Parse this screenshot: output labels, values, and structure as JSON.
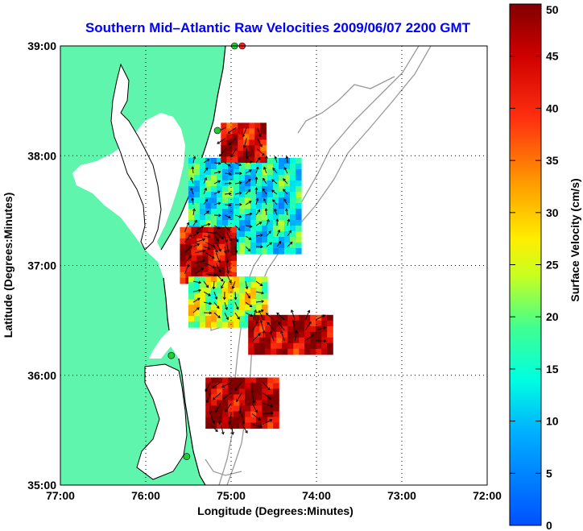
{
  "title": "Southern Mid–Atlantic Raw Velocities 2009/06/07 2200 GMT",
  "colors": {
    "title": "#0000ff",
    "land": "#5ff5ac",
    "water": "#ffffff",
    "coast": "#000000",
    "bathymetry": "#9a9a9a",
    "station": "#22cc33",
    "station_active": "#ff2020",
    "arrow": "#000000",
    "grid": "#000000"
  },
  "map": {
    "x_label": "Longitude (Degrees:Minutes)",
    "y_label": "Latitude (Degrees:Minutes)",
    "lon_range": [
      -77,
      -72
    ],
    "lat_range": [
      35,
      39
    ],
    "x_ticks": [
      {
        "value": -77,
        "label": "77:00"
      },
      {
        "value": -76,
        "label": "76:00"
      },
      {
        "value": -75,
        "label": "75:00"
      },
      {
        "value": -74,
        "label": "74:00"
      },
      {
        "value": -73,
        "label": "73:00"
      },
      {
        "value": -72,
        "label": "72:00"
      }
    ],
    "y_ticks": [
      {
        "value": 35,
        "label": "35:00"
      },
      {
        "value": 36,
        "label": "36:00"
      },
      {
        "value": 37,
        "label": "37:00"
      },
      {
        "value": 38,
        "label": "38:00"
      },
      {
        "value": 39,
        "label": "39:00"
      }
    ],
    "grid": "dotted",
    "stations": [
      {
        "lon": -74.87,
        "lat": 39.0,
        "status": "active"
      },
      {
        "lon": -74.96,
        "lat": 39.0,
        "status": "ok"
      },
      {
        "lon": -75.16,
        "lat": 38.23,
        "status": "ok"
      },
      {
        "lon": -75.7,
        "lat": 36.18,
        "status": "ok"
      },
      {
        "lon": -75.52,
        "lat": 35.26,
        "status": "ok"
      }
    ]
  },
  "colorbar": {
    "label": "Surface Velocity (cm/s)",
    "min": 0,
    "max": 50,
    "ticks": [
      {
        "value": 0,
        "label": "0"
      },
      {
        "value": 5,
        "label": "5"
      },
      {
        "value": 10,
        "label": "10"
      },
      {
        "value": 15,
        "label": "15"
      },
      {
        "value": 20,
        "label": "20"
      },
      {
        "value": 25,
        "label": "25"
      },
      {
        "value": 30,
        "label": "30"
      },
      {
        "value": 35,
        "label": "35"
      },
      {
        "value": 40,
        "label": "40"
      },
      {
        "value": 45,
        "label": "45"
      },
      {
        "value": 50,
        "label": "50"
      }
    ]
  },
  "velocity_regions": [
    {
      "name": "delmarva-cyan",
      "speed": 14,
      "lon": [
        -75.5,
        -74.2
      ],
      "lat": [
        37.12,
        37.98
      ]
    },
    {
      "name": "delaware-mouth-red",
      "speed": 44,
      "lon": [
        -75.12,
        -74.6
      ],
      "lat": [
        37.95,
        38.3
      ]
    },
    {
      "name": "chesapeake-offshore-red",
      "speed": 45,
      "lon": [
        -75.6,
        -74.95
      ],
      "lat": [
        36.85,
        37.35
      ]
    },
    {
      "name": "mid-yellow",
      "speed": 24,
      "lon": [
        -75.5,
        -74.6
      ],
      "lat": [
        36.45,
        36.9
      ]
    },
    {
      "name": "hatteras-north-red",
      "speed": 46,
      "lon": [
        -74.8,
        -73.85
      ],
      "lat": [
        36.2,
        36.55
      ]
    },
    {
      "name": "hatteras-red",
      "speed": 47,
      "lon": [
        -75.3,
        -74.5
      ],
      "lat": [
        35.52,
        35.98
      ]
    }
  ]
}
